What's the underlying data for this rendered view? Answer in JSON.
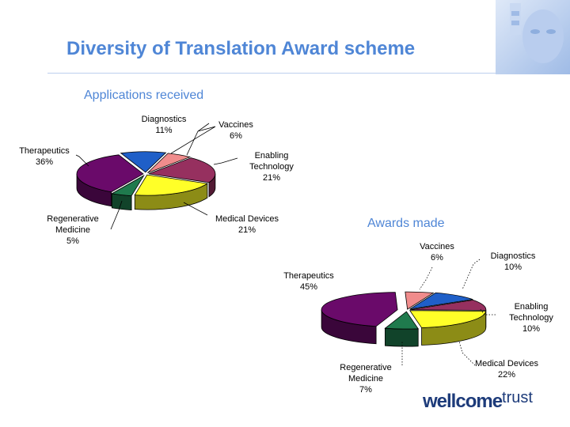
{
  "title": "Diversity of Translation Award scheme",
  "logo": {
    "word": "wellcome",
    "suffix": "trust"
  },
  "chart_data": [
    {
      "type": "pie",
      "title": "Applications received",
      "slices": [
        {
          "name": "Diagnostics",
          "label": "11%",
          "value": 11,
          "color": "#1f5fc8"
        },
        {
          "name": "Vaccines",
          "label": "6%",
          "value": 6,
          "color": "#f08c8c"
        },
        {
          "name": "Enabling Technology",
          "label": "21%",
          "value": 21,
          "color": "#96305f"
        },
        {
          "name": "Medical Devices",
          "label": "21%",
          "value": 21,
          "color": "#ffff28"
        },
        {
          "name": "Regenerative Medicine",
          "label": "5%",
          "value": 5,
          "color": "#1f7a4d"
        },
        {
          "name": "Therapeutics",
          "label": "36%",
          "value": 36,
          "color": "#6a0a6a"
        }
      ]
    },
    {
      "type": "pie",
      "title": "Awards made",
      "slices": [
        {
          "name": "Vaccines",
          "label": "6%",
          "value": 6,
          "color": "#f08c8c"
        },
        {
          "name": "Diagnostics",
          "label": "10%",
          "value": 10,
          "color": "#1f5fc8"
        },
        {
          "name": "Enabling Technology",
          "label": "10%",
          "value": 10,
          "color": "#96305f"
        },
        {
          "name": "Medical Devices",
          "label": "22%",
          "value": 22,
          "color": "#ffff28"
        },
        {
          "name": "Regenerative Medicine",
          "label": "7%",
          "value": 7,
          "color": "#1f7a4d"
        },
        {
          "name": "Therapeutics",
          "label": "45%",
          "value": 45,
          "color": "#6a0a6a"
        }
      ]
    }
  ]
}
